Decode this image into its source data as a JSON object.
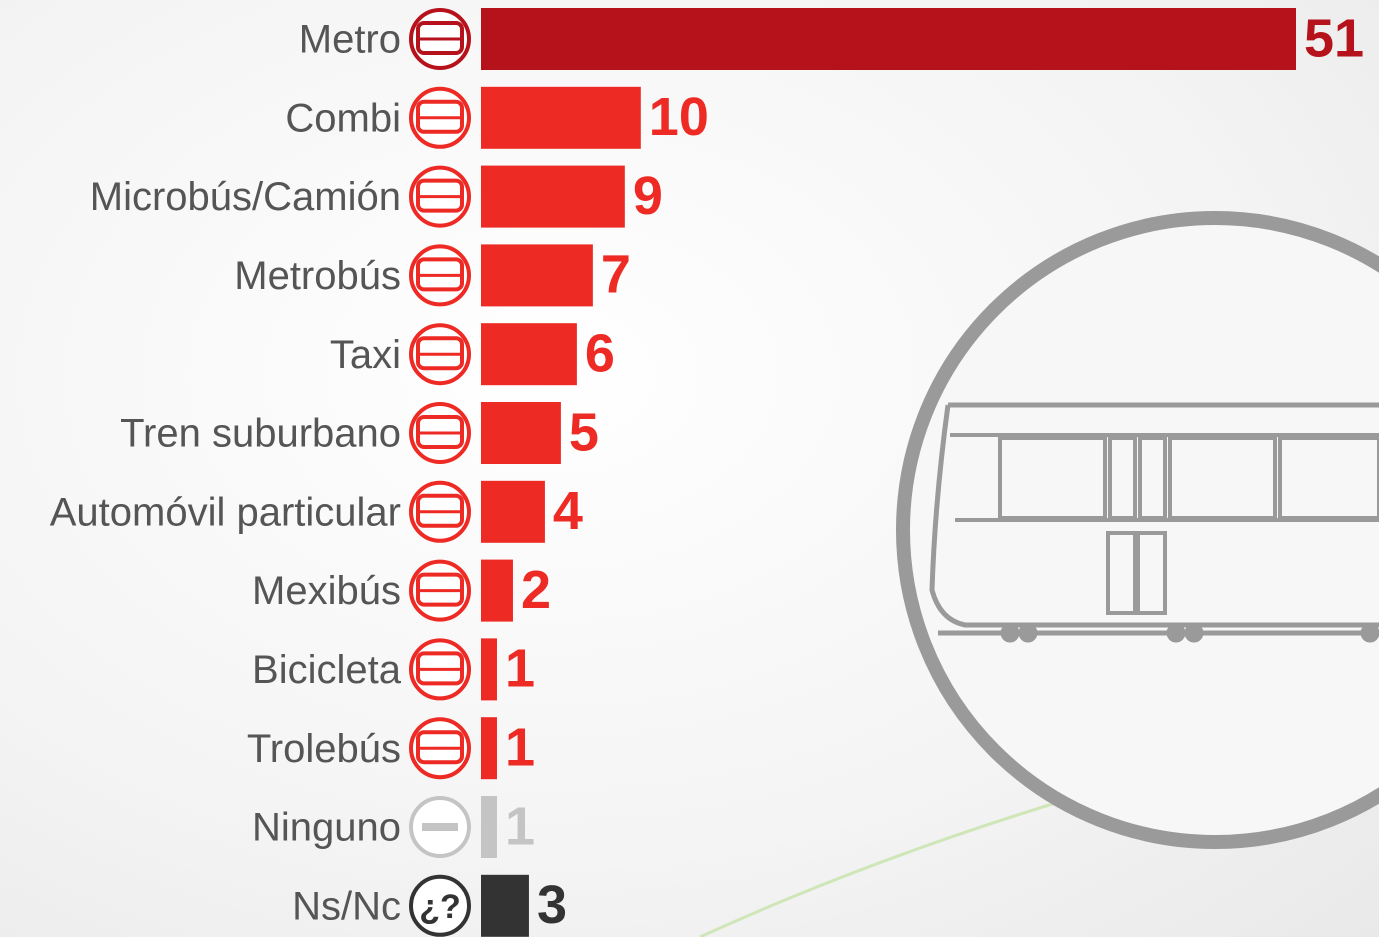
{
  "chart_data": {
    "type": "bar",
    "orientation": "horizontal",
    "categories": [
      "Metro",
      "Combi",
      "Microbús/Camión",
      "Metrobús",
      "Taxi",
      "Tren suburbano",
      "Automóvil particular",
      "Mexibús",
      "Bicicleta",
      "Trolebús",
      "Ninguno",
      "Ns/Nc"
    ],
    "values": [
      51,
      10,
      9,
      7,
      6,
      5,
      4,
      2,
      1,
      1,
      1,
      3
    ],
    "colors": [
      "#b5121b",
      "#ee2a24",
      "#ee2a24",
      "#ee2a24",
      "#ee2a24",
      "#ee2a24",
      "#ee2a24",
      "#ee2a24",
      "#ee2a24",
      "#ee2a24",
      "#c4c4c4",
      "#333333"
    ],
    "unknown_icon_text": "¿?"
  }
}
